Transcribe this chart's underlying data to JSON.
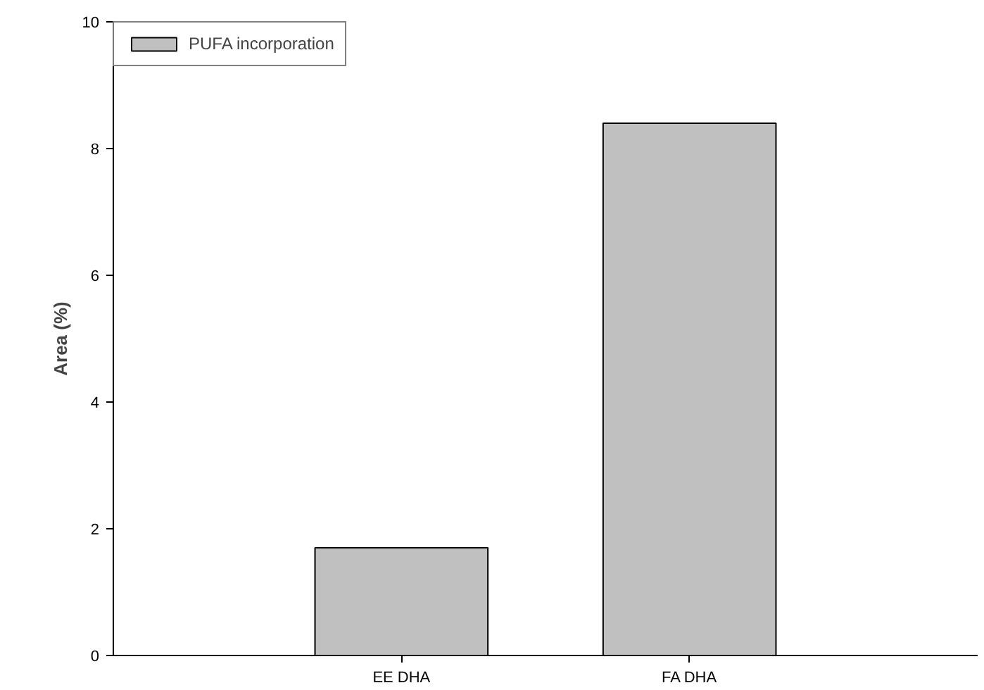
{
  "chart_data": {
    "type": "bar",
    "ylabel": "Area (%)",
    "categories": [
      "EE DHA",
      "FA DHA"
    ],
    "series": [
      {
        "name": "PUFA incorporation",
        "color": "#c0c0c0",
        "values": [
          1.7,
          8.4
        ]
      }
    ],
    "ylim": [
      0,
      10
    ],
    "yticks": [
      0,
      2,
      4,
      6,
      8,
      10
    ],
    "grid": false,
    "legend": "top left"
  }
}
